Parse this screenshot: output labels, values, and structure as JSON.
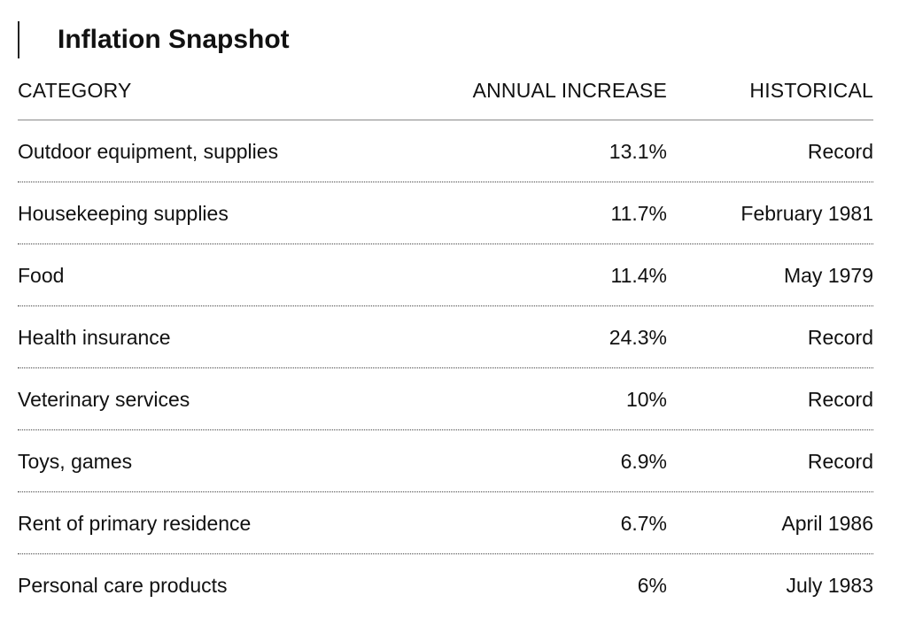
{
  "title": "Inflation Snapshot",
  "chart_data": {
    "type": "table",
    "columns": [
      "CATEGORY",
      "ANNUAL INCREASE",
      "HISTORICAL"
    ],
    "rows": [
      {
        "category": "Outdoor equipment, supplies",
        "annual_increase": "13.1%",
        "historical": "Record"
      },
      {
        "category": "Housekeeping supplies",
        "annual_increase": "11.7%",
        "historical": "February 1981"
      },
      {
        "category": "Food",
        "annual_increase": "11.4%",
        "historical": "May 1979"
      },
      {
        "category": "Health insurance",
        "annual_increase": "24.3%",
        "historical": "Record"
      },
      {
        "category": "Veterinary services",
        "annual_increase": "10%",
        "historical": "Record"
      },
      {
        "category": "Toys, games",
        "annual_increase": "6.9%",
        "historical": "Record"
      },
      {
        "category": "Rent of primary residence",
        "annual_increase": "6.7%",
        "historical": "April 1986"
      },
      {
        "category": "Personal care products",
        "annual_increase": "6%",
        "historical": "July 1983"
      }
    ]
  }
}
